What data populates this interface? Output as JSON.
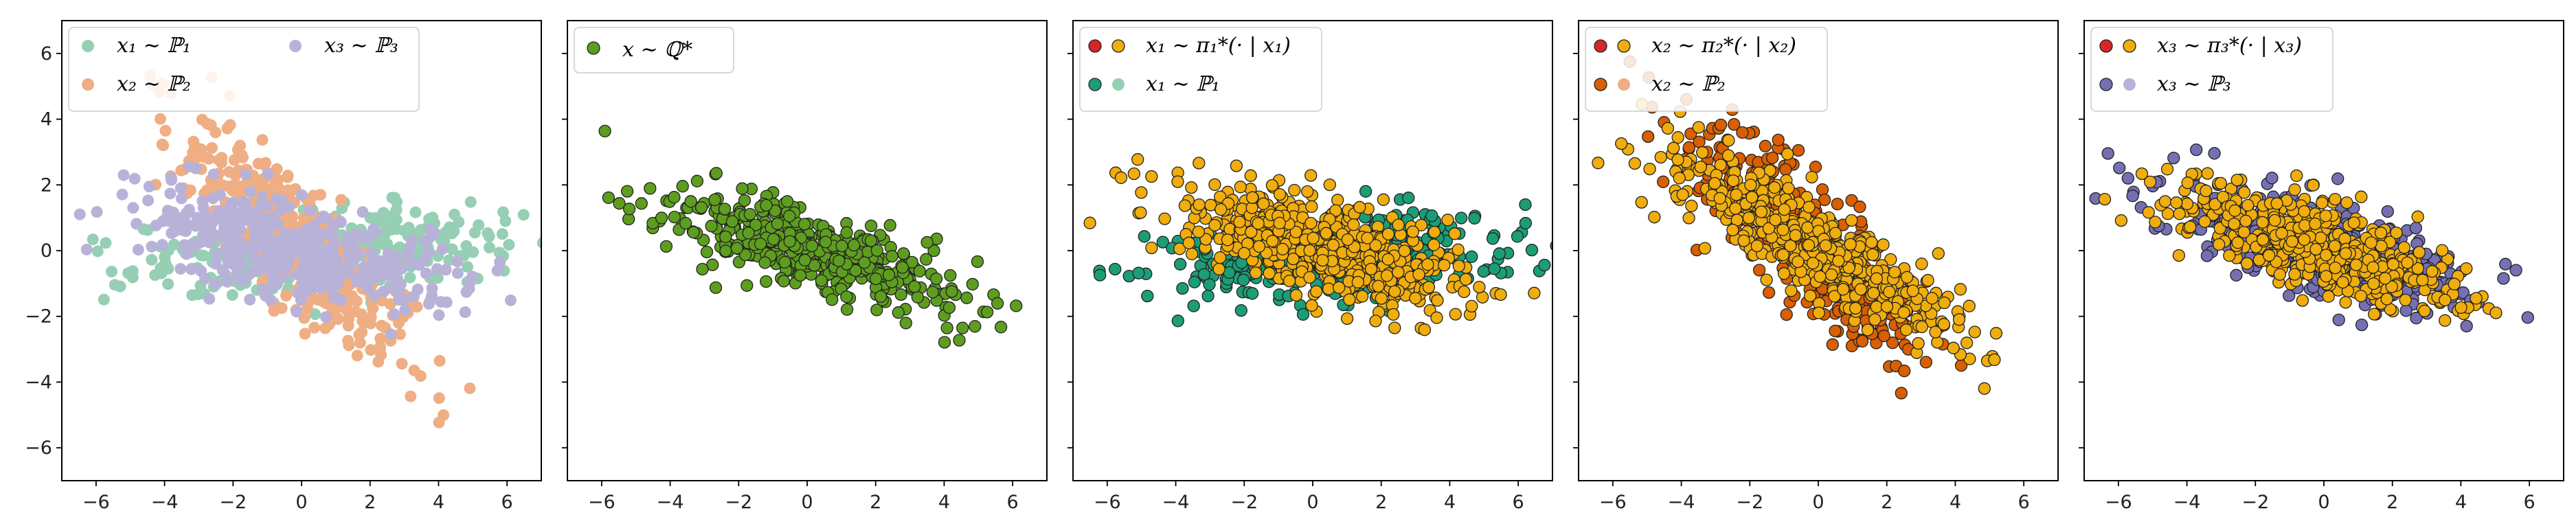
{
  "colors": {
    "p1_light": "#96cfb4",
    "p2_light": "#efae83",
    "p3_light": "#b9b2d8",
    "q_star": "#5e9e1f",
    "pi_red": "#d62728",
    "pi_gold": "#f0ad0c",
    "p1_dark": "#1b9e77",
    "p2_dark": "#d95f02",
    "p3_dark": "#7570b3"
  },
  "chart_data": [
    {
      "type": "scatter",
      "panel": "P1-P2-P3 samples",
      "xlim": [
        -7,
        7
      ],
      "ylim": [
        -7,
        7
      ],
      "xticks": [
        "−6",
        "−4",
        "−2",
        "0",
        "2",
        "4",
        "6"
      ],
      "yticks": [
        "−6",
        "−4",
        "−2",
        "0",
        "2",
        "4",
        "6"
      ],
      "legend_position": "upper-left",
      "legend_columns": 2,
      "series": [
        {
          "name": "x₁ ∼ ℙ₁",
          "color_key": "p1_light",
          "edge": "none",
          "n": 400,
          "mean": [
            0.6,
            0.0
          ],
          "cov": [
            [
              7.0,
              0.45
            ],
            [
              0.45,
              0.45
            ]
          ]
        },
        {
          "name": "x₂ ∼ ℙ₂",
          "color_key": "p2_light",
          "edge": "none",
          "n": 400,
          "mean": [
            -0.3,
            0.3
          ],
          "cov": [
            [
              2.6,
              -2.3
            ],
            [
              -2.3,
              3.0
            ]
          ]
        },
        {
          "name": "x₃ ∼ ℙ₃",
          "color_key": "p3_light",
          "edge": "none",
          "n": 400,
          "mean": [
            -0.2,
            0.0
          ],
          "cov": [
            [
              5.5,
              -1.25
            ],
            [
              -1.25,
              0.9
            ]
          ]
        }
      ]
    },
    {
      "type": "scatter",
      "panel": "Q* samples",
      "xlim": [
        -7,
        7
      ],
      "ylim": [
        -7,
        7
      ],
      "xticks": [
        "−6",
        "−4",
        "−2",
        "0",
        "2",
        "4",
        "6"
      ],
      "legend_position": "upper-left",
      "series": [
        {
          "name": "x ∼ ℚ*",
          "color_key": "q_star",
          "edge": "#222",
          "n": 450,
          "mean": [
            0.0,
            0.0
          ],
          "cov": [
            [
              4.5,
              -1.5
            ],
            [
              -1.5,
              0.9
            ]
          ]
        }
      ]
    },
    {
      "type": "scatter",
      "panel": "Transport of P1",
      "xlim": [
        -7,
        7
      ],
      "ylim": [
        -7,
        7
      ],
      "xticks": [
        "−6",
        "−4",
        "−2",
        "0",
        "2",
        "4",
        "6"
      ],
      "legend_position": "upper-left",
      "legend": [
        {
          "name": "x₁ ∼ π₁*(· | x₁)",
          "colors": [
            "pi_red",
            "pi_gold"
          ]
        },
        {
          "name": "x₁ ∼ ℙ₁",
          "colors": [
            "p1_dark",
            "p1_light"
          ]
        }
      ],
      "series": [
        {
          "name": "x₁ ∼ ℙ₁",
          "color_key": "p1_dark",
          "edge": "#222",
          "n": 400,
          "mean": [
            0.5,
            -0.2
          ],
          "cov": [
            [
              7.5,
              0.5
            ],
            [
              0.5,
              0.45
            ]
          ]
        },
        {
          "name": "x₁ ∼ π₁*(· | x₁)",
          "color_key": "pi_gold",
          "edge": "#222",
          "n": 520,
          "mean": [
            0.3,
            0.1
          ],
          "cov": [
            [
              4.2,
              -1.1
            ],
            [
              -1.1,
              0.8
            ]
          ]
        }
      ]
    },
    {
      "type": "scatter",
      "panel": "Transport of P2",
      "xlim": [
        -7,
        7
      ],
      "ylim": [
        -7,
        7
      ],
      "xticks": [
        "−6",
        "−4",
        "−2",
        "0",
        "2",
        "4",
        "6"
      ],
      "legend_position": "upper-left",
      "legend": [
        {
          "name": "x₂ ∼ π₂*(· | x₂)",
          "colors": [
            "pi_red",
            "pi_gold"
          ]
        },
        {
          "name": "x₂ ∼ ℙ₂",
          "colors": [
            "p2_dark",
            "p2_light"
          ]
        }
      ],
      "series": [
        {
          "name": "x₂ ∼ ℙ₂",
          "color_key": "p2_dark",
          "edge": "#222",
          "n": 400,
          "mean": [
            -0.3,
            0.3
          ],
          "cov": [
            [
              2.6,
              -2.3
            ],
            [
              -2.3,
              3.0
            ]
          ]
        },
        {
          "name": "x₂ ∼ π₂*(· | x₂)",
          "color_key": "pi_gold",
          "edge": "#222",
          "n": 520,
          "mean": [
            -0.1,
            0.1
          ],
          "cov": [
            [
              4.5,
              -2.6
            ],
            [
              -2.6,
              2.0
            ]
          ]
        }
      ]
    },
    {
      "type": "scatter",
      "panel": "Transport of P3",
      "xlim": [
        -7,
        7
      ],
      "ylim": [
        -7,
        7
      ],
      "xticks": [
        "−6",
        "−4",
        "−2",
        "0",
        "2",
        "4",
        "6"
      ],
      "legend_position": "upper-left",
      "legend": [
        {
          "name": "x₃ ∼ π₃*(· | x₃)",
          "colors": [
            "pi_red",
            "pi_gold"
          ]
        },
        {
          "name": "x₃ ∼ ℙ₃",
          "colors": [
            "p3_dark",
            "p3_light"
          ]
        }
      ],
      "series": [
        {
          "name": "x₃ ∼ ℙ₃",
          "color_key": "p3_dark",
          "edge": "#222",
          "n": 400,
          "mean": [
            0.0,
            0.0
          ],
          "cov": [
            [
              5.0,
              -1.4
            ],
            [
              -1.4,
              0.85
            ]
          ]
        },
        {
          "name": "x₃ ∼ π₃*(· | x₃)",
          "color_key": "pi_gold",
          "edge": "#222",
          "n": 520,
          "mean": [
            -0.1,
            0.1
          ],
          "cov": [
            [
              4.0,
              -1.3
            ],
            [
              -1.3,
              0.8
            ]
          ]
        }
      ]
    }
  ]
}
